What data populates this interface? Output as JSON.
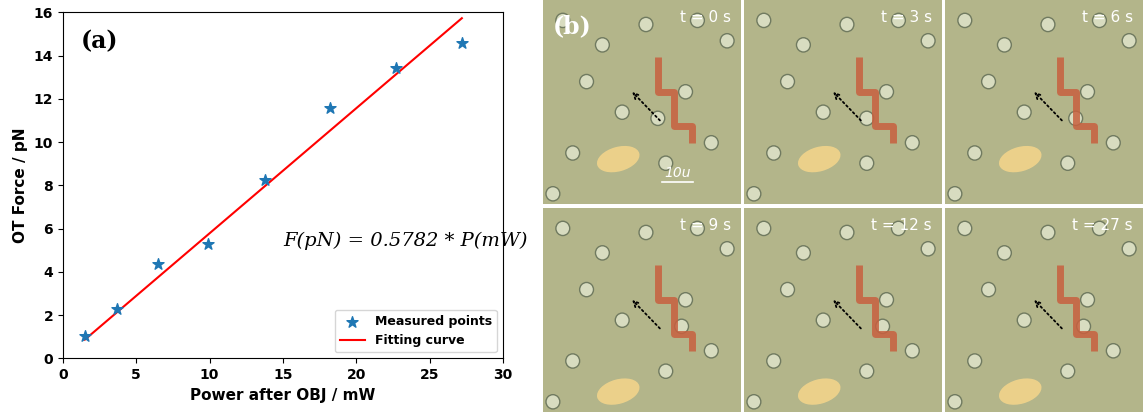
{
  "chart_data": {
    "type": "scatter",
    "panel_label": "(a)",
    "x_label": "Power after OBJ / mW",
    "y_label": "OT Force / pN",
    "annotation": "F(pN) = 0.5782 * P(mW)",
    "xlim": [
      0,
      30
    ],
    "xticks": [
      0,
      5,
      10,
      15,
      20,
      25,
      30
    ],
    "ylim": [
      0,
      16
    ],
    "yticks": [
      0,
      2,
      4,
      6,
      8,
      10,
      12,
      14,
      16
    ],
    "legend": "lower right",
    "series": [
      {
        "name": "Measured points",
        "type": "scatter",
        "color": "#1f77b4",
        "marker": "star",
        "x": [
          1.5,
          3.7,
          6.5,
          9.9,
          13.8,
          18.2,
          22.7,
          27.2
        ],
        "values": [
          1.05,
          2.3,
          4.35,
          5.3,
          8.25,
          11.6,
          13.45,
          14.6
        ]
      },
      {
        "name": "Fitting curve",
        "type": "line",
        "color": "#ff0000",
        "line_style": "solid",
        "x": [
          1.5,
          27.2
        ],
        "values": [
          0.87,
          15.73
        ]
      }
    ]
  },
  "panel_b": {
    "label": "(b)",
    "scale_bar": "10u",
    "frames": [
      "t = 0 s",
      "t = 3 s",
      "t = 6 s",
      "t = 9 s",
      "t = 12 s",
      "t = 27 s"
    ]
  }
}
